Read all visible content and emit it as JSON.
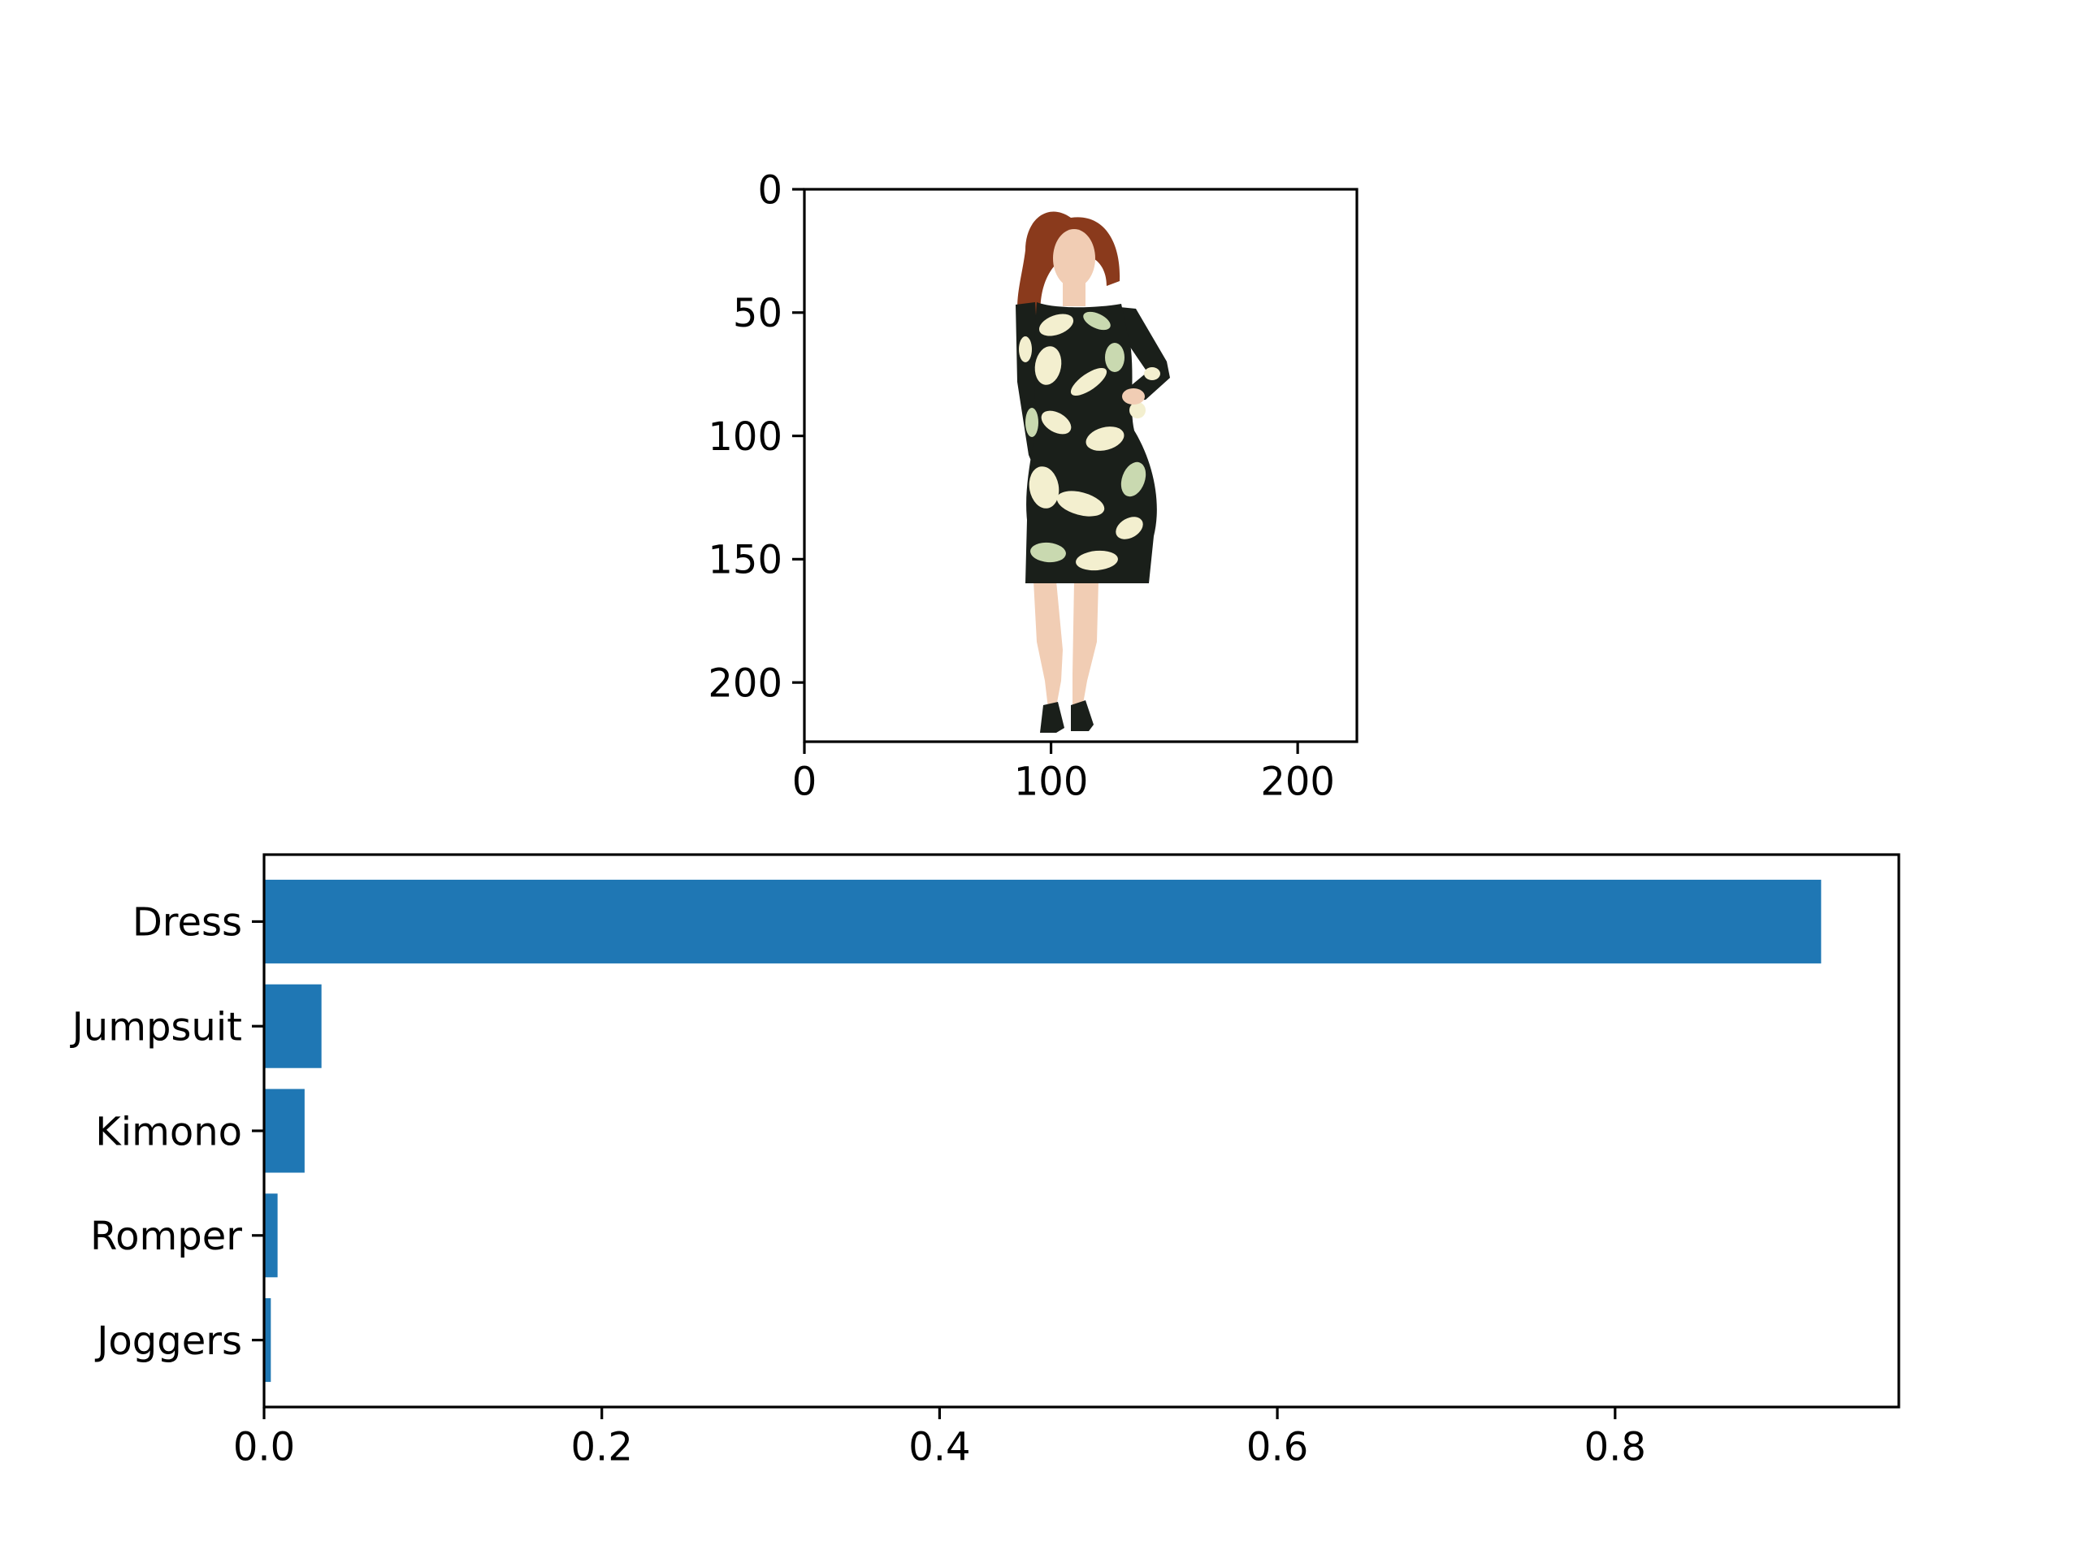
{
  "figure": {
    "image_panel": {
      "x_ticks": [
        "0",
        "100",
        "200"
      ],
      "x_tick_values": [
        0,
        100,
        200
      ],
      "y_ticks": [
        "0",
        "50",
        "100",
        "150",
        "200"
      ],
      "y_tick_values": [
        0,
        50,
        100,
        150,
        200
      ],
      "xlim": [
        0,
        224
      ],
      "ylim": [
        224,
        0
      ],
      "content": "product-photo",
      "colors": {
        "dress_dark": "#1a1f1a",
        "dress_light": "#f3efcf",
        "dress_green": "#c9d9b0",
        "hair": "#8a3a1c",
        "skin": "#f1cdb4"
      }
    }
  },
  "chart_data": {
    "type": "bar",
    "orientation": "horizontal",
    "categories": [
      "Dress",
      "Jumpsuit",
      "Kimono",
      "Romper",
      "Joggers"
    ],
    "values": [
      0.922,
      0.034,
      0.024,
      0.008,
      0.004
    ],
    "x_ticks": [
      "0.0",
      "0.2",
      "0.4",
      "0.6",
      "0.8"
    ],
    "x_tick_values": [
      0.0,
      0.2,
      0.4,
      0.6,
      0.8
    ],
    "xlim": [
      0,
      0.968
    ],
    "xlabel": "",
    "ylabel": "",
    "title": "",
    "grid": false,
    "bar_color": "#1f77b4"
  }
}
